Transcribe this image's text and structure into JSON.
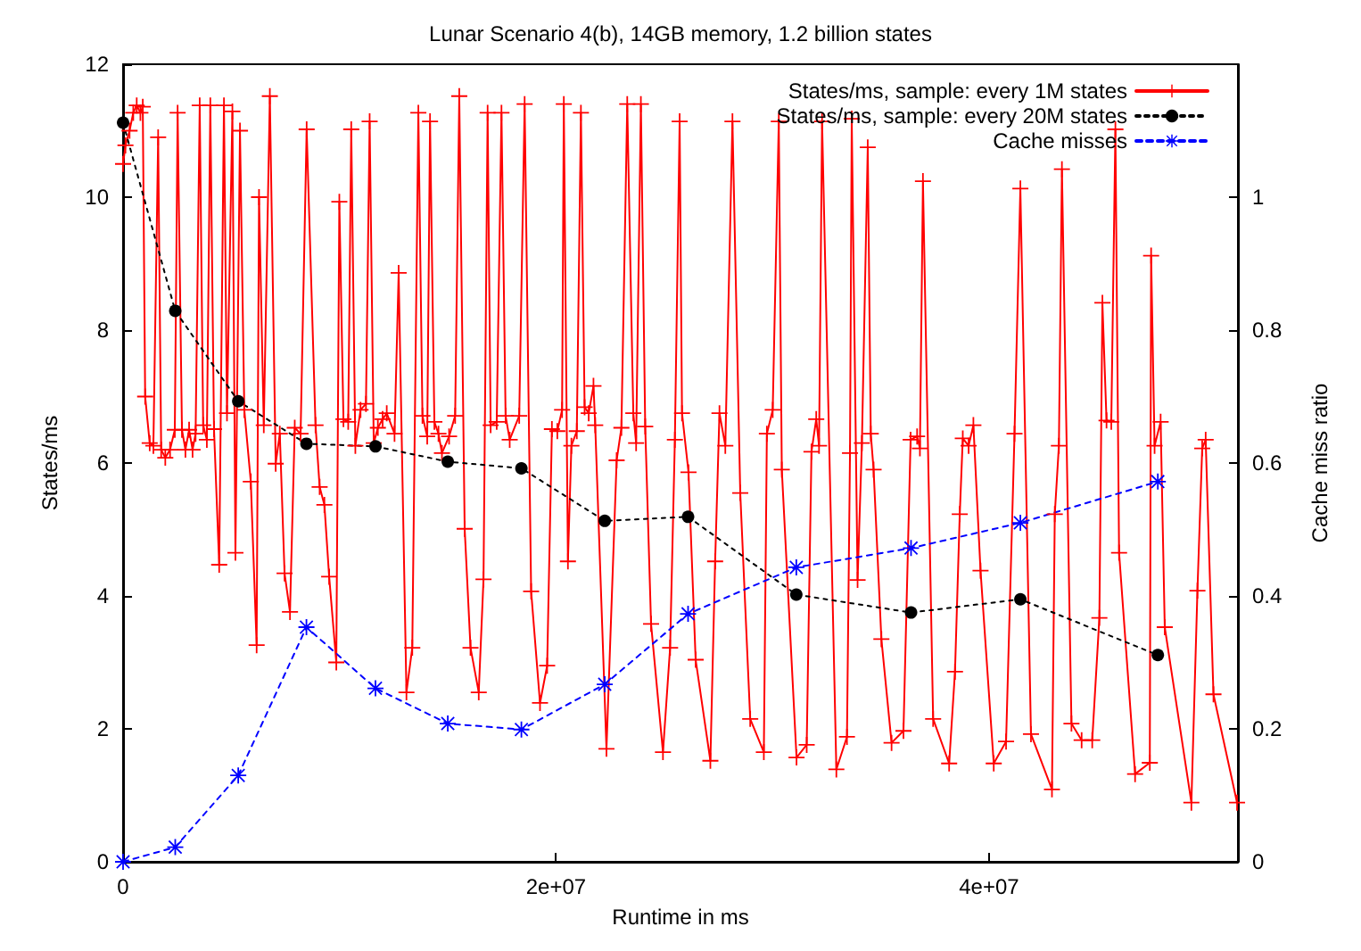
{
  "chart_data": {
    "type": "line",
    "title": "Lunar Scenario 4(b), 14GB memory, 1.2 billion states",
    "xlabel": "Runtime in ms",
    "ylabel": "States/ms",
    "y2label": "Cache miss ratio",
    "xlim": [
      0,
      51500000.0
    ],
    "xticks": [
      0,
      {
        "value": 20000000.0,
        "label": "2e+07"
      },
      {
        "value": 40000000.0,
        "label": "4e+07"
      }
    ],
    "ylim": [
      0,
      12
    ],
    "yticks": [
      0,
      2,
      4,
      6,
      8,
      10,
      12
    ],
    "y2lim": [
      0,
      1.2
    ],
    "y2ticks": [
      0,
      0.2,
      0.4,
      0.6,
      0.8,
      1
    ],
    "grid": false,
    "legend": "top right",
    "series": [
      {
        "name": "States/ms, sample: every 1M states",
        "color": "#ff0000",
        "marker": "cross",
        "line_style": "solid",
        "x": [
          0,
          110000.0,
          300000.0,
          470000.0,
          630000.0,
          800000.0,
          910000.0,
          1020000.0,
          1230000.0,
          1400000.0,
          1620000.0,
          1760000.0,
          1950000.0,
          2170000.0,
          2390000.0,
          2520000.0,
          2720000.0,
          2880000.0,
          3050000.0,
          3210000.0,
          3350000.0,
          3540000.0,
          3700000.0,
          3870000.0,
          4030000.0,
          4200000.0,
          4440000.0,
          4660000.0,
          4800000.0,
          5050000.0,
          5190000.0,
          5400000.0,
          5600000.0,
          5900000.0,
          6170000.0,
          6280000.0,
          6500000.0,
          6780000.0,
          7050000.0,
          7240000.0,
          7460000.0,
          7710000.0,
          7930000.0,
          8200000.0,
          8480000.0,
          8890000.0,
          9080000.0,
          9300000.0,
          9520000.0,
          9850000.0,
          9990000.0,
          10180000.0,
          10400000.0,
          10540000.0,
          10730000.0,
          10970000.0,
          11220000.0,
          11390000.0,
          11580000.0,
          11770000.0,
          11990000.0,
          12180000.0,
          12540000.0,
          12730000.0,
          13090000.0,
          13360000.0,
          13640000.0,
          13830000.0,
          14050000.0,
          14180000.0,
          14380000.0,
          14570000.0,
          14730000.0,
          15060000.0,
          15340000.0,
          15530000.0,
          15780000.0,
          16050000.0,
          16430000.0,
          16650000.0,
          16840000.0,
          16980000.0,
          17260000.0,
          17480000.0,
          17670000.0,
          17860000.0,
          18300000.0,
          18550000.0,
          18850000.0,
          19260000.0,
          19590000.0,
          19810000.0,
          20060000.0,
          20280000.0,
          20360000.0,
          20550000.0,
          20710000.0,
          20960000.0,
          21150000.0,
          21320000.0,
          21510000.0,
          21730000.0,
          21810000.0,
          22330000.0,
          22800000.0,
          23020000.0,
          23290000.0,
          23570000.0,
          23700000.0,
          23920000.0,
          24120000.0,
          24390000.0,
          24940000.0,
          25270000.0,
          25490000.0,
          25710000.0,
          25820000.0,
          26120000.0,
          26450000.0,
          27130000.0,
          27350000.0,
          27550000.0,
          27820000.0,
          28150000.0,
          28510000.0,
          28970000.0,
          29600000.0,
          29740000.0,
          30010000.0,
          30290000.0,
          30430000.0,
          31110000.0,
          31580000.0,
          31800000.0,
          32020000.0,
          32150000.0,
          32290000.0,
          32950000.0,
          33440000.0,
          33580000.0,
          33660000.0,
          33930000.0,
          34130000.0,
          34400000.0,
          34540000.0,
          34670000.0,
          35030000.0,
          35500000.0,
          36050000.0,
          36380000.0,
          36680000.0,
          36810000.0,
          36950000.0,
          37420000.0,
          38160000.0,
          38430000.0,
          38650000.0,
          38790000.0,
          39060000.0,
          39280000.0,
          39610000.0,
          40220000.0,
          40790000.0,
          41180000.0,
          41450000.0,
          41940000.0,
          42910000.0,
          43040000.0,
          43230000.0,
          43370000.0,
          43810000.0,
          44280000.0,
          44770000.0,
          45100000.0,
          45240000.0,
          45430000.0,
          45650000.0,
          45840000.0,
          46010000.0,
          46750000.0,
          47430000.0,
          47490000.0,
          47650000.0,
          47930000.0,
          48120000.0,
          49350000.0,
          49630000.0,
          49850000.0,
          50010000.0,
          50370000.0,
          51460000.0
        ],
        "values": [
          10.5,
          10.78,
          11.0,
          11.27,
          11.38,
          11.27,
          11.36,
          7.0,
          6.3,
          6.26,
          10.9,
          6.2,
          6.08,
          6.2,
          6.5,
          11.27,
          6.5,
          6.2,
          6.5,
          6.2,
          6.44,
          11.38,
          6.57,
          6.35,
          11.38,
          6.51,
          4.47,
          11.38,
          6.75,
          11.29,
          4.65,
          11.0,
          6.8,
          5.72,
          3.26,
          10.0,
          6.57,
          11.52,
          5.99,
          6.44,
          4.34,
          3.76,
          6.53,
          6.44,
          11.02,
          6.57,
          5.64,
          5.37,
          4.29,
          3.0,
          9.93,
          6.66,
          6.62,
          11.02,
          6.26,
          6.8,
          6.89,
          11.14,
          6.3,
          6.53,
          6.66,
          6.75,
          6.44,
          8.86,
          2.55,
          3.22,
          11.27,
          6.71,
          6.4,
          11.14,
          6.62,
          6.44,
          6.15,
          6.4,
          6.71,
          11.52,
          5.01,
          3.22,
          2.55,
          4.25,
          11.27,
          6.57,
          6.62,
          11.27,
          6.71,
          6.35,
          6.71,
          11.4,
          4.07,
          2.39,
          2.95,
          6.51,
          6.48,
          6.8,
          11.4,
          4.52,
          6.26,
          6.48,
          11.27,
          6.84,
          6.75,
          7.16,
          6.57,
          1.7,
          6.04,
          6.53,
          11.4,
          6.75,
          6.3,
          11.4,
          6.55,
          3.58,
          1.65,
          3.22,
          6.35,
          11.14,
          6.75,
          5.86,
          3.04,
          1.52,
          4.52,
          6.75,
          6.26,
          11.14,
          5.55,
          2.15,
          1.65,
          6.44,
          6.8,
          11.14,
          5.9,
          1.57,
          1.76,
          6.17,
          6.66,
          6.26,
          11.14,
          1.39,
          1.88,
          6.15,
          11.18,
          4.24,
          6.3,
          10.75,
          6.44,
          5.9,
          3.35,
          1.79,
          1.97,
          6.35,
          6.4,
          6.22,
          10.24,
          2.15,
          1.48,
          2.86,
          5.23,
          6.37,
          6.26,
          6.57,
          4.38,
          1.48,
          1.81,
          6.44,
          10.13,
          1.92,
          1.09,
          5.23,
          6.26,
          10.42,
          2.08,
          1.83,
          1.83,
          3.67,
          8.41,
          6.64,
          6.62,
          11.02,
          4.65,
          1.32,
          1.49,
          9.12,
          6.26,
          6.62,
          3.53,
          0.89,
          4.08,
          6.22,
          6.35,
          2.52,
          0.89
        ]
      },
      {
        "name": "States/ms, sample: every 20M states",
        "color": "#000000",
        "marker": "circle",
        "line_style": "dotted",
        "x": [
          0,
          2410000.0,
          5320000.0,
          8470000.0,
          11660000.0,
          15000000.0,
          18400000.0,
          22250000.0,
          26100000.0,
          31100000.0,
          36400000.0,
          41450000.0,
          47800000.0
        ],
        "values": [
          11.12,
          8.29,
          6.93,
          6.29,
          6.25,
          6.02,
          5.92,
          5.13,
          5.19,
          4.02,
          3.75,
          3.95,
          3.11
        ]
      },
      {
        "name": "Cache misses",
        "color": "#0000ff",
        "marker": "star",
        "line_style": "dashed",
        "axis": "y2",
        "x": [
          0,
          2410000.0,
          5320000.0,
          8470000.0,
          11660000.0,
          15000000.0,
          18400000.0,
          22250000.0,
          26100000.0,
          31100000.0,
          36400000.0,
          41450000.0,
          47800000.0
        ],
        "values": [
          0,
          0.022,
          0.13,
          0.353,
          0.261,
          0.208,
          0.199,
          0.267,
          0.373,
          0.443,
          0.472,
          0.51,
          0.572
        ]
      }
    ]
  }
}
